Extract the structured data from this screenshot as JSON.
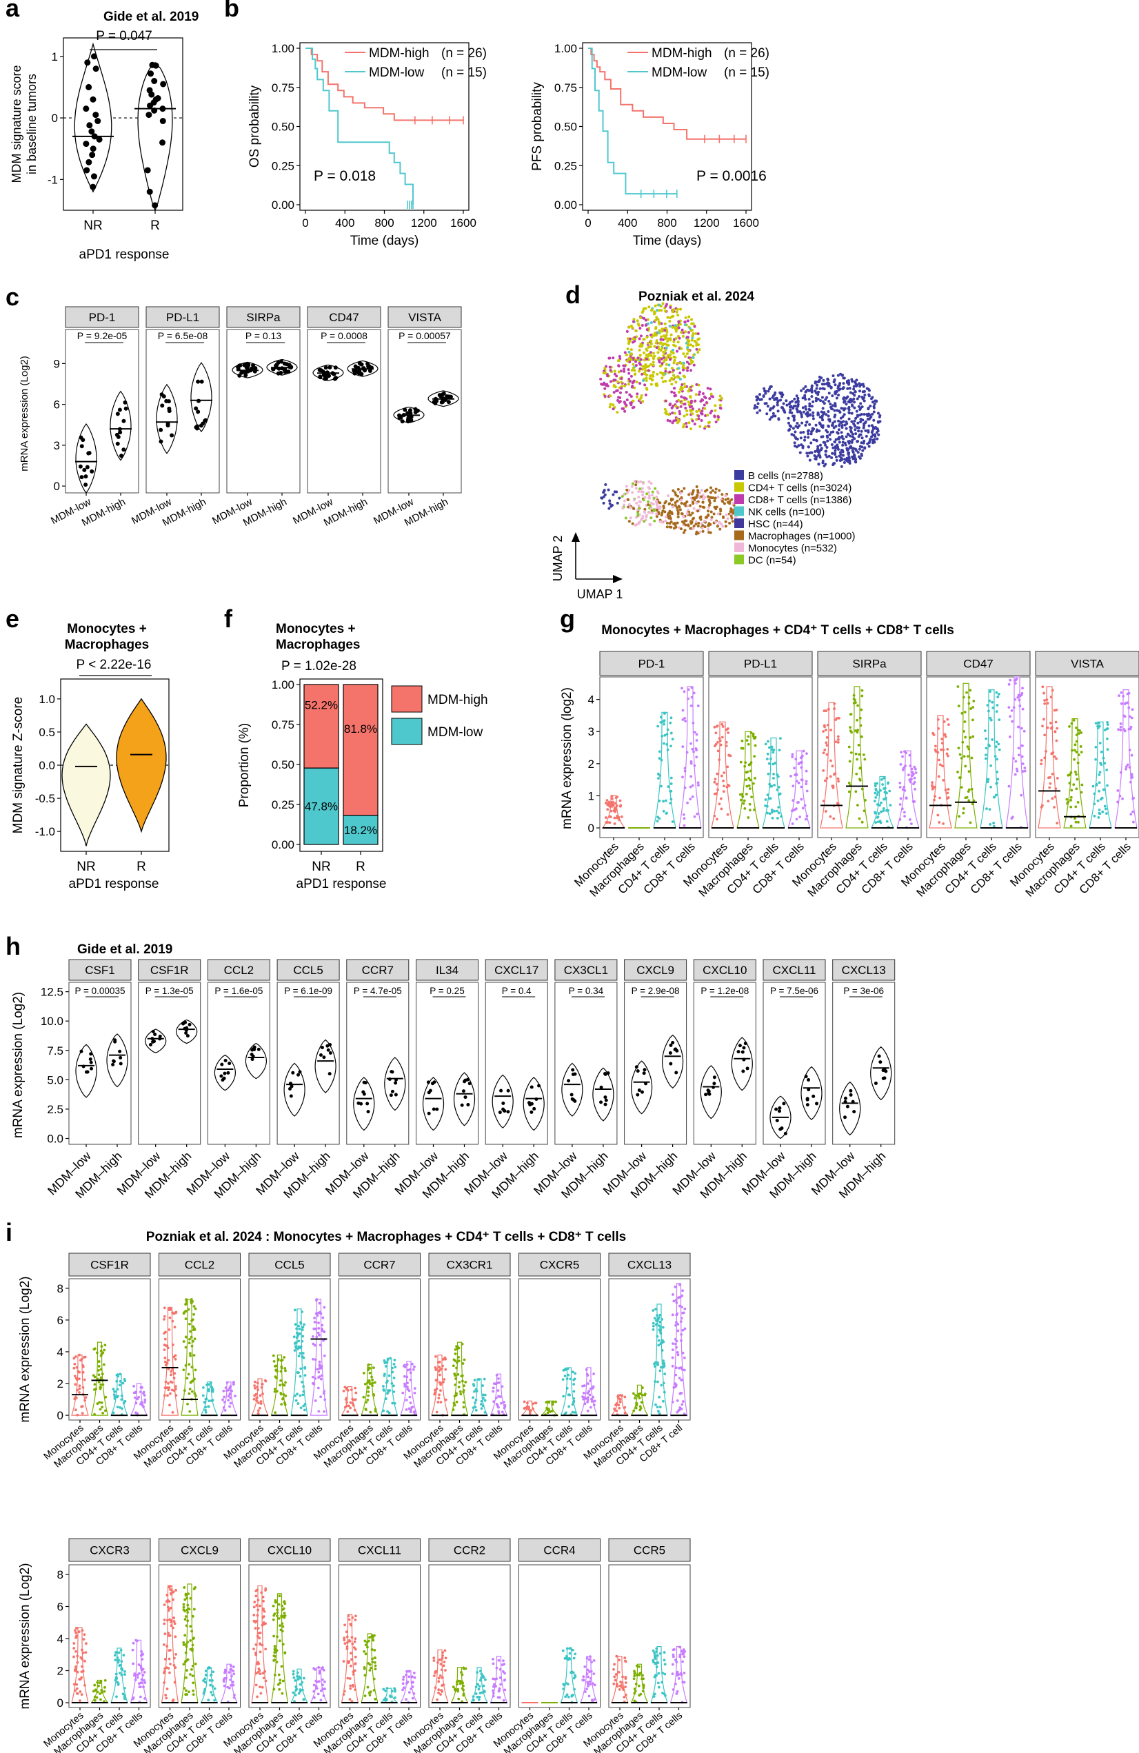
{
  "colors": {
    "MDM-high": "#f4736b",
    "MDM-low": "#4fc8cd",
    "NR": "#fbf8e0",
    "R": "#f5a21b",
    "Monocytes": "#f4736b",
    "Macrophages": "#7cae00",
    "CD4+ T cells": "#3cc4c4",
    "CD8+ T cells": "#c77cff",
    "strip": "#d9d9d9"
  },
  "labels": {
    "a": "a",
    "b": "b",
    "c": "c",
    "d": "d",
    "e": "e",
    "f": "f",
    "g": "g",
    "h": "h",
    "i": "i"
  },
  "chart_data": [
    {
      "panel": "a",
      "type": "violin",
      "title": "Gide et al. 2019",
      "ylabel": "MDM signature score in baseline tumors",
      "xlabel": "aPD1 response",
      "categories": [
        "NR",
        "R"
      ],
      "medians": [
        -0.3,
        0.15
      ],
      "pvalue": "P = 0.047",
      "ylim": [
        -1.5,
        1.3
      ],
      "yticks": [
        -1,
        0,
        1
      ],
      "points": [
        [
          -1.12,
          -0.95,
          -0.85,
          -0.72,
          -0.6,
          -0.5,
          -0.42,
          -0.35,
          -0.3,
          -0.22,
          -0.12,
          -0.05,
          0.05,
          0.15,
          0.3,
          0.5,
          0.8,
          0.9,
          1.0
        ],
        [
          -1.42,
          -1.2,
          -0.85,
          -0.4,
          -0.05,
          0.05,
          0.12,
          0.15,
          0.2,
          0.25,
          0.3,
          0.32,
          0.38,
          0.45,
          0.55,
          0.6,
          0.72,
          0.85,
          0.86
        ]
      ]
    },
    {
      "panel": "b",
      "type": "line",
      "subtype": "survival",
      "ylabel": "OS probability",
      "xlabel": "Time (days)",
      "legend": [
        "MDM-high",
        "(n = 26)",
        "MDM-low",
        "(n = 15)"
      ],
      "pvalue": "P = 0.018",
      "xlim": [
        0,
        1600
      ],
      "ylim": [
        0,
        1
      ],
      "xticks": [
        0,
        400,
        800,
        1200,
        1600
      ],
      "yticks": [
        "0.00",
        "0.25",
        "0.50",
        "0.75",
        "1.00"
      ],
      "series": [
        {
          "name": "MDM-high",
          "x": [
            0,
            60,
            120,
            170,
            230,
            330,
            390,
            480,
            600,
            790,
            900,
            1600
          ],
          "y": [
            1,
            0.96,
            0.92,
            0.85,
            0.77,
            0.73,
            0.69,
            0.65,
            0.62,
            0.58,
            0.54,
            0.54
          ]
        },
        {
          "name": "MDM-low",
          "x": [
            0,
            70,
            100,
            120,
            180,
            240,
            330,
            850,
            900,
            960,
            1010,
            1090
          ],
          "y": [
            1,
            0.93,
            0.87,
            0.8,
            0.73,
            0.6,
            0.4,
            0.33,
            0.27,
            0.2,
            0.13,
            0.0
          ]
        }
      ]
    },
    {
      "panel": "b2",
      "type": "line",
      "subtype": "survival",
      "ylabel": "PFS probability",
      "xlabel": "Time (days)",
      "legend": [
        "MDM-high",
        "(n = 26)",
        "MDM-low",
        "(n = 15)"
      ],
      "pvalue": "P = 0.0016",
      "xlim": [
        0,
        1600
      ],
      "ylim": [
        0,
        1
      ],
      "xticks": [
        0,
        400,
        800,
        1200,
        1600
      ],
      "yticks": [
        "0.00",
        "0.25",
        "0.50",
        "0.75",
        "1.00"
      ],
      "series": [
        {
          "name": "MDM-high",
          "x": [
            0,
            30,
            60,
            90,
            120,
            170,
            230,
            330,
            450,
            560,
            760,
            870,
            1000,
            1600
          ],
          "y": [
            1,
            0.96,
            0.92,
            0.88,
            0.85,
            0.8,
            0.74,
            0.64,
            0.6,
            0.56,
            0.52,
            0.48,
            0.42,
            0.42
          ]
        },
        {
          "name": "MDM-low",
          "x": [
            0,
            40,
            70,
            110,
            150,
            200,
            260,
            380,
            900
          ],
          "y": [
            1,
            0.87,
            0.73,
            0.6,
            0.47,
            0.27,
            0.2,
            0.07,
            0.07
          ]
        }
      ]
    },
    {
      "panel": "c",
      "type": "violin",
      "ylabel": "mRNA expression (Log2)",
      "ylim": [
        -0.5,
        11.5
      ],
      "yticks": [
        0,
        3,
        6,
        9
      ],
      "categories": [
        "MDM-low",
        "MDM-high"
      ],
      "facets": [
        {
          "name": "PD-1",
          "p": "P = 9.2e-05",
          "medians": [
            1.8,
            4.2
          ]
        },
        {
          "name": "PD-L1",
          "p": "P = 6.5e-08",
          "medians": [
            4.7,
            6.3
          ]
        },
        {
          "name": "SIRPa",
          "p": "P = 0.13",
          "medians": [
            8.5,
            8.7
          ]
        },
        {
          "name": "CD47",
          "p": "P = 0.0008",
          "medians": [
            8.3,
            8.6
          ]
        },
        {
          "name": "VISTA",
          "p": "P = 0.00057",
          "medians": [
            5.2,
            6.4
          ]
        }
      ]
    },
    {
      "panel": "d",
      "type": "scatter",
      "title": "Pozniak et al. 2024",
      "xlabel": "UMAP 1",
      "ylabel": "UMAP 2",
      "legend": [
        "B cells (n=2788)",
        "CD4+ T cells (n=3024)",
        "CD8+ T cells (n=1386)",
        "NK cells (n=100)",
        "HSC (n=44)",
        "Macrophages (n=1000)",
        "Monocytes (n=532)",
        "DC (n=54)"
      ],
      "legend_colors": [
        "#3b3ba0",
        "#c8c800",
        "#c03cad",
        "#4fc8cd",
        "#40389b",
        "#a66a1c",
        "#f0b8d8",
        "#8ac926"
      ]
    },
    {
      "panel": "e",
      "type": "violin",
      "title": "Monocytes + Macrophages",
      "ylabel": "MDM signature Z-score",
      "xlabel": "aPD1 response",
      "categories": [
        "NR",
        "R"
      ],
      "medians": [
        -0.02,
        0.16
      ],
      "pvalue": "P < 2.22e-16",
      "ylim": [
        -1.3,
        1.3
      ],
      "yticks": [
        "-1.0",
        "-0.5",
        "0.0",
        "0.5",
        "1.0"
      ]
    },
    {
      "panel": "f",
      "type": "bar",
      "subtype": "stacked",
      "title": "Monocytes + Macrophages",
      "ylabel": "Proportion (%)",
      "xlabel": "aPD1 response",
      "pvalue": "P =  1.02e-28",
      "categories": [
        "NR",
        "R"
      ],
      "series": [
        {
          "name": "MDM-low",
          "values": [
            47.8,
            18.2
          ],
          "labels": [
            "47.8%",
            "18.2%"
          ]
        },
        {
          "name": "MDM-high",
          "values": [
            52.2,
            81.8
          ],
          "labels": [
            "52.2%",
            "81.8%"
          ]
        }
      ],
      "yticks": [
        "0.00",
        "0.25",
        "0.50",
        "0.75",
        "1.00"
      ]
    },
    {
      "panel": "g",
      "type": "violin",
      "title": "Monocytes + Macrophages + CD4⁺ T cells + CD8⁺ T cells",
      "ylabel": "mRNA expression (log2)",
      "ylim": [
        -0.3,
        4.7
      ],
      "yticks": [
        0,
        1,
        2,
        3,
        4
      ],
      "categories": [
        "Monocytes",
        "Macrophages",
        "CD4+ T cells",
        "CD8+ T cells"
      ],
      "facets": [
        {
          "name": "PD-1",
          "medians": [
            0,
            0,
            0,
            0
          ]
        },
        {
          "name": "PD-L1",
          "medians": [
            0,
            0,
            0,
            0
          ]
        },
        {
          "name": "SIRPa",
          "medians": [
            0.7,
            1.3,
            0,
            0
          ]
        },
        {
          "name": "CD47",
          "medians": [
            0.7,
            0.8,
            0,
            0
          ]
        },
        {
          "name": "VISTA",
          "medians": [
            1.15,
            0.35,
            0,
            0
          ]
        }
      ]
    },
    {
      "panel": "h",
      "type": "violin",
      "title": "Gide et al. 2019",
      "ylabel": "mRNA expression (Log2)",
      "ylim": [
        -0.5,
        13.3
      ],
      "yticks": [
        "0.0",
        "2.5",
        "5.0",
        "7.5",
        "10.0",
        "12.5"
      ],
      "categories": [
        "MDM–low",
        "MDM–high"
      ],
      "facets": [
        {
          "name": "CSF1",
          "p": "P = 0.00035",
          "medians": [
            6.2,
            7.1
          ]
        },
        {
          "name": "CSF1R",
          "p": "P = 1.3e-05",
          "medians": [
            8.5,
            9.3
          ]
        },
        {
          "name": "CCL2",
          "p": "P = 1.6e-05",
          "medians": [
            5.9,
            6.9
          ]
        },
        {
          "name": "CCL5",
          "p": "P = 6.1e-09",
          "medians": [
            4.6,
            6.6
          ]
        },
        {
          "name": "CCR7",
          "p": "P = 4.7e-05",
          "medians": [
            3.4,
            5.1
          ]
        },
        {
          "name": "IL34",
          "p": "P = 0.25",
          "medians": [
            3.4,
            3.8
          ]
        },
        {
          "name": "CXCL17",
          "p": "P = 0.4",
          "medians": [
            3.6,
            3.4
          ]
        },
        {
          "name": "CX3CL1",
          "p": "P = 0.34",
          "medians": [
            4.6,
            4.2
          ]
        },
        {
          "name": "CXCL9",
          "p": "P = 2.9e-08",
          "medians": [
            4.8,
            7.0
          ]
        },
        {
          "name": "CXCL10",
          "p": "P = 1.2e-08",
          "medians": [
            4.4,
            6.8
          ]
        },
        {
          "name": "CXCL11",
          "p": "P = 7.5e-06",
          "medians": [
            1.8,
            4.3
          ]
        },
        {
          "name": "CXCL13",
          "p": "P = 3e-06",
          "medians": [
            3.0,
            6.0
          ]
        }
      ]
    },
    {
      "panel": "i",
      "type": "violin",
      "title": "Pozniak et al. 2024 : Monocytes + Macrophages + CD4⁺ T cells + CD8⁺ T cells",
      "ylabel": "mRNA expression (Log2)",
      "ylim": [
        -0.3,
        8.6
      ],
      "yticks": [
        0,
        2,
        4,
        6,
        8
      ],
      "categories": [
        "Monocytes",
        "Macrophages",
        "CD4+ T cells",
        "CD8+ T cells"
      ],
      "categories_last_facet": [
        "Monocytes",
        "Macrophages",
        "CD4+ T cells",
        "CD8+ T cell"
      ],
      "facets": [
        {
          "name": "CSF1R",
          "medians": [
            1.3,
            2.2,
            0,
            0
          ],
          "max": [
            3.8,
            4.6,
            2.6,
            2.0
          ]
        },
        {
          "name": "CCL2",
          "medians": [
            3.0,
            1.0,
            0,
            0
          ],
          "max": [
            6.8,
            7.3,
            2.1,
            2.1
          ]
        },
        {
          "name": "CCL5",
          "medians": [
            0,
            0,
            0,
            4.8
          ],
          "max": [
            2.3,
            3.8,
            6.7,
            7.3
          ]
        },
        {
          "name": "CCR7",
          "medians": [
            0,
            0,
            0,
            0
          ],
          "max": [
            1.8,
            3.2,
            3.6,
            3.4
          ]
        },
        {
          "name": "CX3CR1",
          "medians": [
            0,
            0,
            0,
            0
          ],
          "max": [
            3.8,
            4.6,
            2.3,
            2.6
          ]
        },
        {
          "name": "CXCR5",
          "medians": [
            0,
            0,
            0,
            0
          ],
          "max": [
            0.9,
            0.9,
            3.0,
            3.0
          ]
        },
        {
          "name": "CXCL13",
          "medians": [
            0,
            0,
            0,
            0
          ],
          "max": [
            1.3,
            1.9,
            7.0,
            8.3
          ]
        },
        {
          "name": "CXCR3",
          "medians": [
            0,
            0,
            0,
            0
          ],
          "max": [
            4.7,
            1.4,
            3.4,
            3.9
          ]
        },
        {
          "name": "CXCL9",
          "medians": [
            0,
            0,
            0,
            0
          ],
          "max": [
            7.3,
            7.4,
            2.2,
            2.4
          ]
        },
        {
          "name": "CXCL10",
          "medians": [
            0,
            0,
            0,
            0
          ],
          "max": [
            7.3,
            6.8,
            2.1,
            2.2
          ]
        },
        {
          "name": "CXCL11",
          "medians": [
            0,
            0,
            0,
            0
          ],
          "max": [
            5.5,
            4.3,
            0.9,
            2.0
          ]
        },
        {
          "name": "CCR2",
          "medians": [
            0,
            0,
            0,
            0
          ],
          "max": [
            3.3,
            2.2,
            2.2,
            2.9
          ]
        },
        {
          "name": "CCR4",
          "medians": [
            0,
            0,
            0,
            0
          ],
          "max": [
            0.1,
            0.1,
            3.4,
            2.9
          ]
        },
        {
          "name": "CCR5",
          "medians": [
            0,
            0,
            0,
            0
          ],
          "max": [
            2.9,
            2.4,
            3.5,
            3.5
          ]
        }
      ]
    }
  ]
}
